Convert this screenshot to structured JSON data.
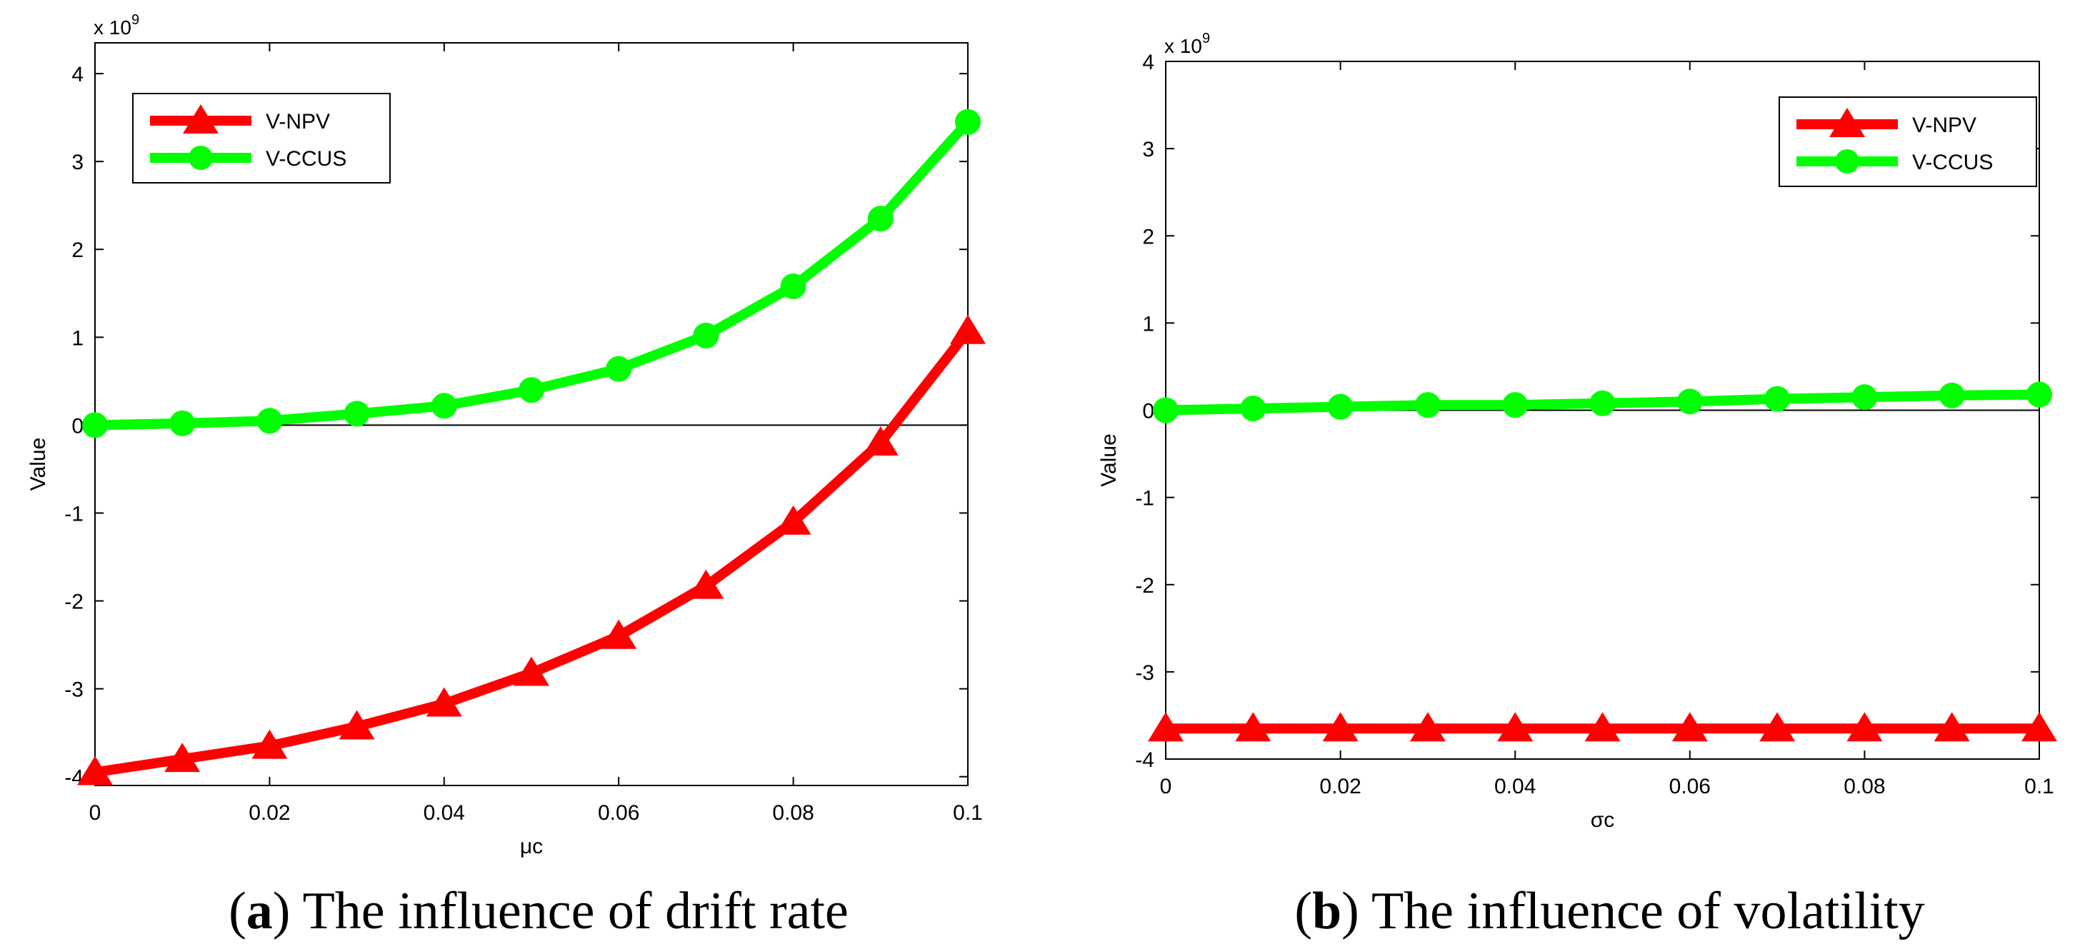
{
  "chart_data": [
    {
      "type": "line",
      "title": "",
      "xlabel": "μc",
      "ylabel": "Value",
      "y_exponent_label": "x 10",
      "y_exponent_power": "9",
      "x": [
        0,
        0.01,
        0.02,
        0.03,
        0.04,
        0.05,
        0.06,
        0.07,
        0.08,
        0.09,
        0.1
      ],
      "xlim": [
        0,
        0.1
      ],
      "ylim": [
        -4.1,
        4.35
      ],
      "x_ticks": [
        0,
        0.02,
        0.04,
        0.06,
        0.08,
        0.1
      ],
      "x_tick_labels": [
        "0",
        "0.02",
        "0.04",
        "0.06",
        "0.08",
        "0.1"
      ],
      "y_ticks": [
        -4,
        -3,
        -2,
        -1,
        0,
        1,
        2,
        3,
        4
      ],
      "y_tick_labels": [
        "-4",
        "-3",
        "-2",
        "-1",
        "0",
        "1",
        "2",
        "3",
        "4"
      ],
      "zero_line": true,
      "legend_position": "top-left",
      "series": [
        {
          "name": "V-NPV",
          "marker": "triangle",
          "color": "#ff0000",
          "values": [
            -3.95,
            -3.8,
            -3.65,
            -3.43,
            -3.17,
            -2.82,
            -2.4,
            -1.83,
            -1.1,
            -0.2,
            1.07
          ]
        },
        {
          "name": "V-CCUS",
          "marker": "circle",
          "color": "#00ff00",
          "values": [
            0.0,
            0.02,
            0.05,
            0.13,
            0.22,
            0.4,
            0.64,
            1.02,
            1.58,
            2.35,
            3.45
          ]
        }
      ],
      "caption_letter": "a",
      "caption_text": "The influence of drift rate"
    },
    {
      "type": "line",
      "title": "",
      "xlabel": "σc",
      "ylabel": "Value",
      "y_exponent_label": "x 10",
      "y_exponent_power": "9",
      "x": [
        0,
        0.01,
        0.02,
        0.03,
        0.04,
        0.05,
        0.06,
        0.07,
        0.08,
        0.09,
        0.1
      ],
      "xlim": [
        0,
        0.1
      ],
      "ylim": [
        -4,
        4
      ],
      "x_ticks": [
        0,
        0.02,
        0.04,
        0.06,
        0.08,
        0.1
      ],
      "x_tick_labels": [
        "0",
        "0.02",
        "0.04",
        "0.06",
        "0.08",
        "0.1"
      ],
      "y_ticks": [
        -4,
        -3,
        -2,
        -1,
        0,
        1,
        2,
        3,
        4
      ],
      "y_tick_labels": [
        "-4",
        "-3",
        "-2",
        "-1",
        "0",
        "1",
        "2",
        "3",
        "4"
      ],
      "zero_line": true,
      "legend_position": "top-right",
      "series": [
        {
          "name": "V-NPV",
          "marker": "triangle",
          "color": "#ff0000",
          "values": [
            -3.65,
            -3.65,
            -3.65,
            -3.65,
            -3.65,
            -3.65,
            -3.65,
            -3.65,
            -3.65,
            -3.65,
            -3.65
          ]
        },
        {
          "name": "V-CCUS",
          "marker": "circle",
          "color": "#00ff00",
          "values": [
            0.0,
            0.02,
            0.04,
            0.06,
            0.06,
            0.08,
            0.1,
            0.13,
            0.15,
            0.17,
            0.18
          ]
        }
      ],
      "caption_letter": "b",
      "caption_text": "The influence of volatility"
    }
  ]
}
